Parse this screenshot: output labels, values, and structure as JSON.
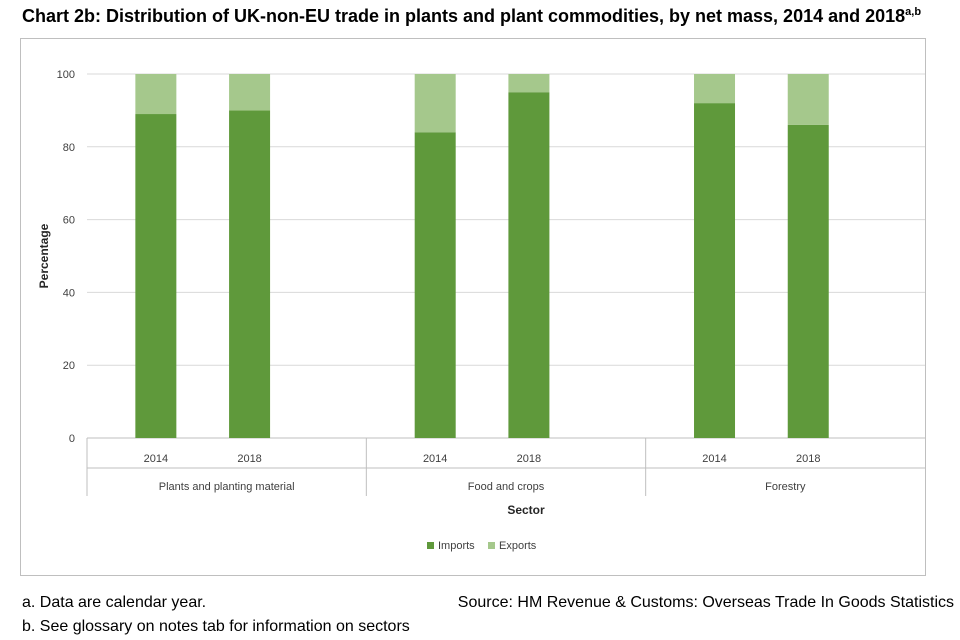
{
  "title": "Chart 2b: Distribution of UK-non-EU trade in plants and plant commodities, by net mass, 2014 and 2018",
  "title_superscript": "a,b",
  "colors": {
    "imports": "#5f993b",
    "exports": "#a5c88c",
    "grid": "#d9d9d9",
    "axis": "#bfbfbf"
  },
  "chart_data": {
    "type": "bar",
    "stacked": true,
    "xlabel": "Sector",
    "ylabel": "Percentage",
    "ylim": [
      0,
      100
    ],
    "yticks": [
      0,
      20,
      40,
      60,
      80,
      100
    ],
    "groups": [
      {
        "label": "Plants and planting material",
        "years": [
          "2014",
          "2018"
        ]
      },
      {
        "label": "Food and crops",
        "years": [
          "2014",
          "2018"
        ]
      },
      {
        "label": "Forestry",
        "years": [
          "2014",
          "2018"
        ]
      }
    ],
    "series": [
      {
        "name": "Imports",
        "values": [
          89,
          90,
          84,
          95,
          92,
          86
        ]
      },
      {
        "name": "Exports",
        "values": [
          11,
          10,
          16,
          5,
          8,
          14
        ]
      }
    ],
    "legend": "bottom-center"
  },
  "notes": {
    "a": "a. Data are calendar year.",
    "b": "b. See glossary on notes tab for information on sectors"
  },
  "source": "Source: HM Revenue & Customs: Overseas Trade In Goods Statistics"
}
